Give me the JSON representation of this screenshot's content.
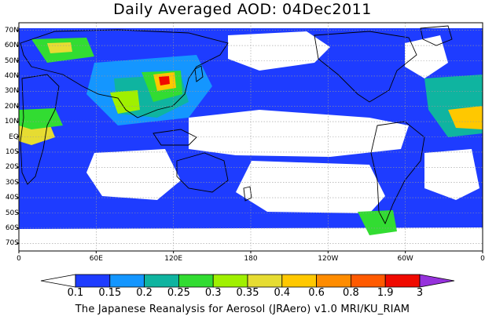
{
  "title": "Daily Averaged AOD: 04Dec2011",
  "footer": "The Japanese Reanalysis for Aerosol (JRAero) v1.0 MRI/KU_RIAM",
  "lat_labels": [
    "70N",
    "60N",
    "50N",
    "40N",
    "30N",
    "20N",
    "10N",
    "EQ",
    "10S",
    "20S",
    "30S",
    "40S",
    "50S",
    "60S",
    "70S"
  ],
  "lon_labels": [
    "0",
    "60E",
    "120E",
    "180",
    "120W",
    "60W",
    "0"
  ],
  "colorbar": {
    "labels": [
      "0.1",
      "0.15",
      "0.2",
      "0.25",
      "0.3",
      "0.35",
      "0.4",
      "0.6",
      "0.8",
      "1.9",
      "3"
    ],
    "colors": [
      "#ffffff",
      "#1e3cff",
      "#1496ff",
      "#0fb4a0",
      "#32dc32",
      "#a0f000",
      "#e6dc32",
      "#ffc800",
      "#ff8c00",
      "#ff5a00",
      "#f00a00",
      "#9632dc"
    ]
  },
  "map": {
    "lat_range": [
      -75,
      75
    ],
    "lon_range": [
      0,
      360
    ],
    "grid": true,
    "land_color": "#ffffff",
    "ocean_fill": "#1e3cff"
  }
}
